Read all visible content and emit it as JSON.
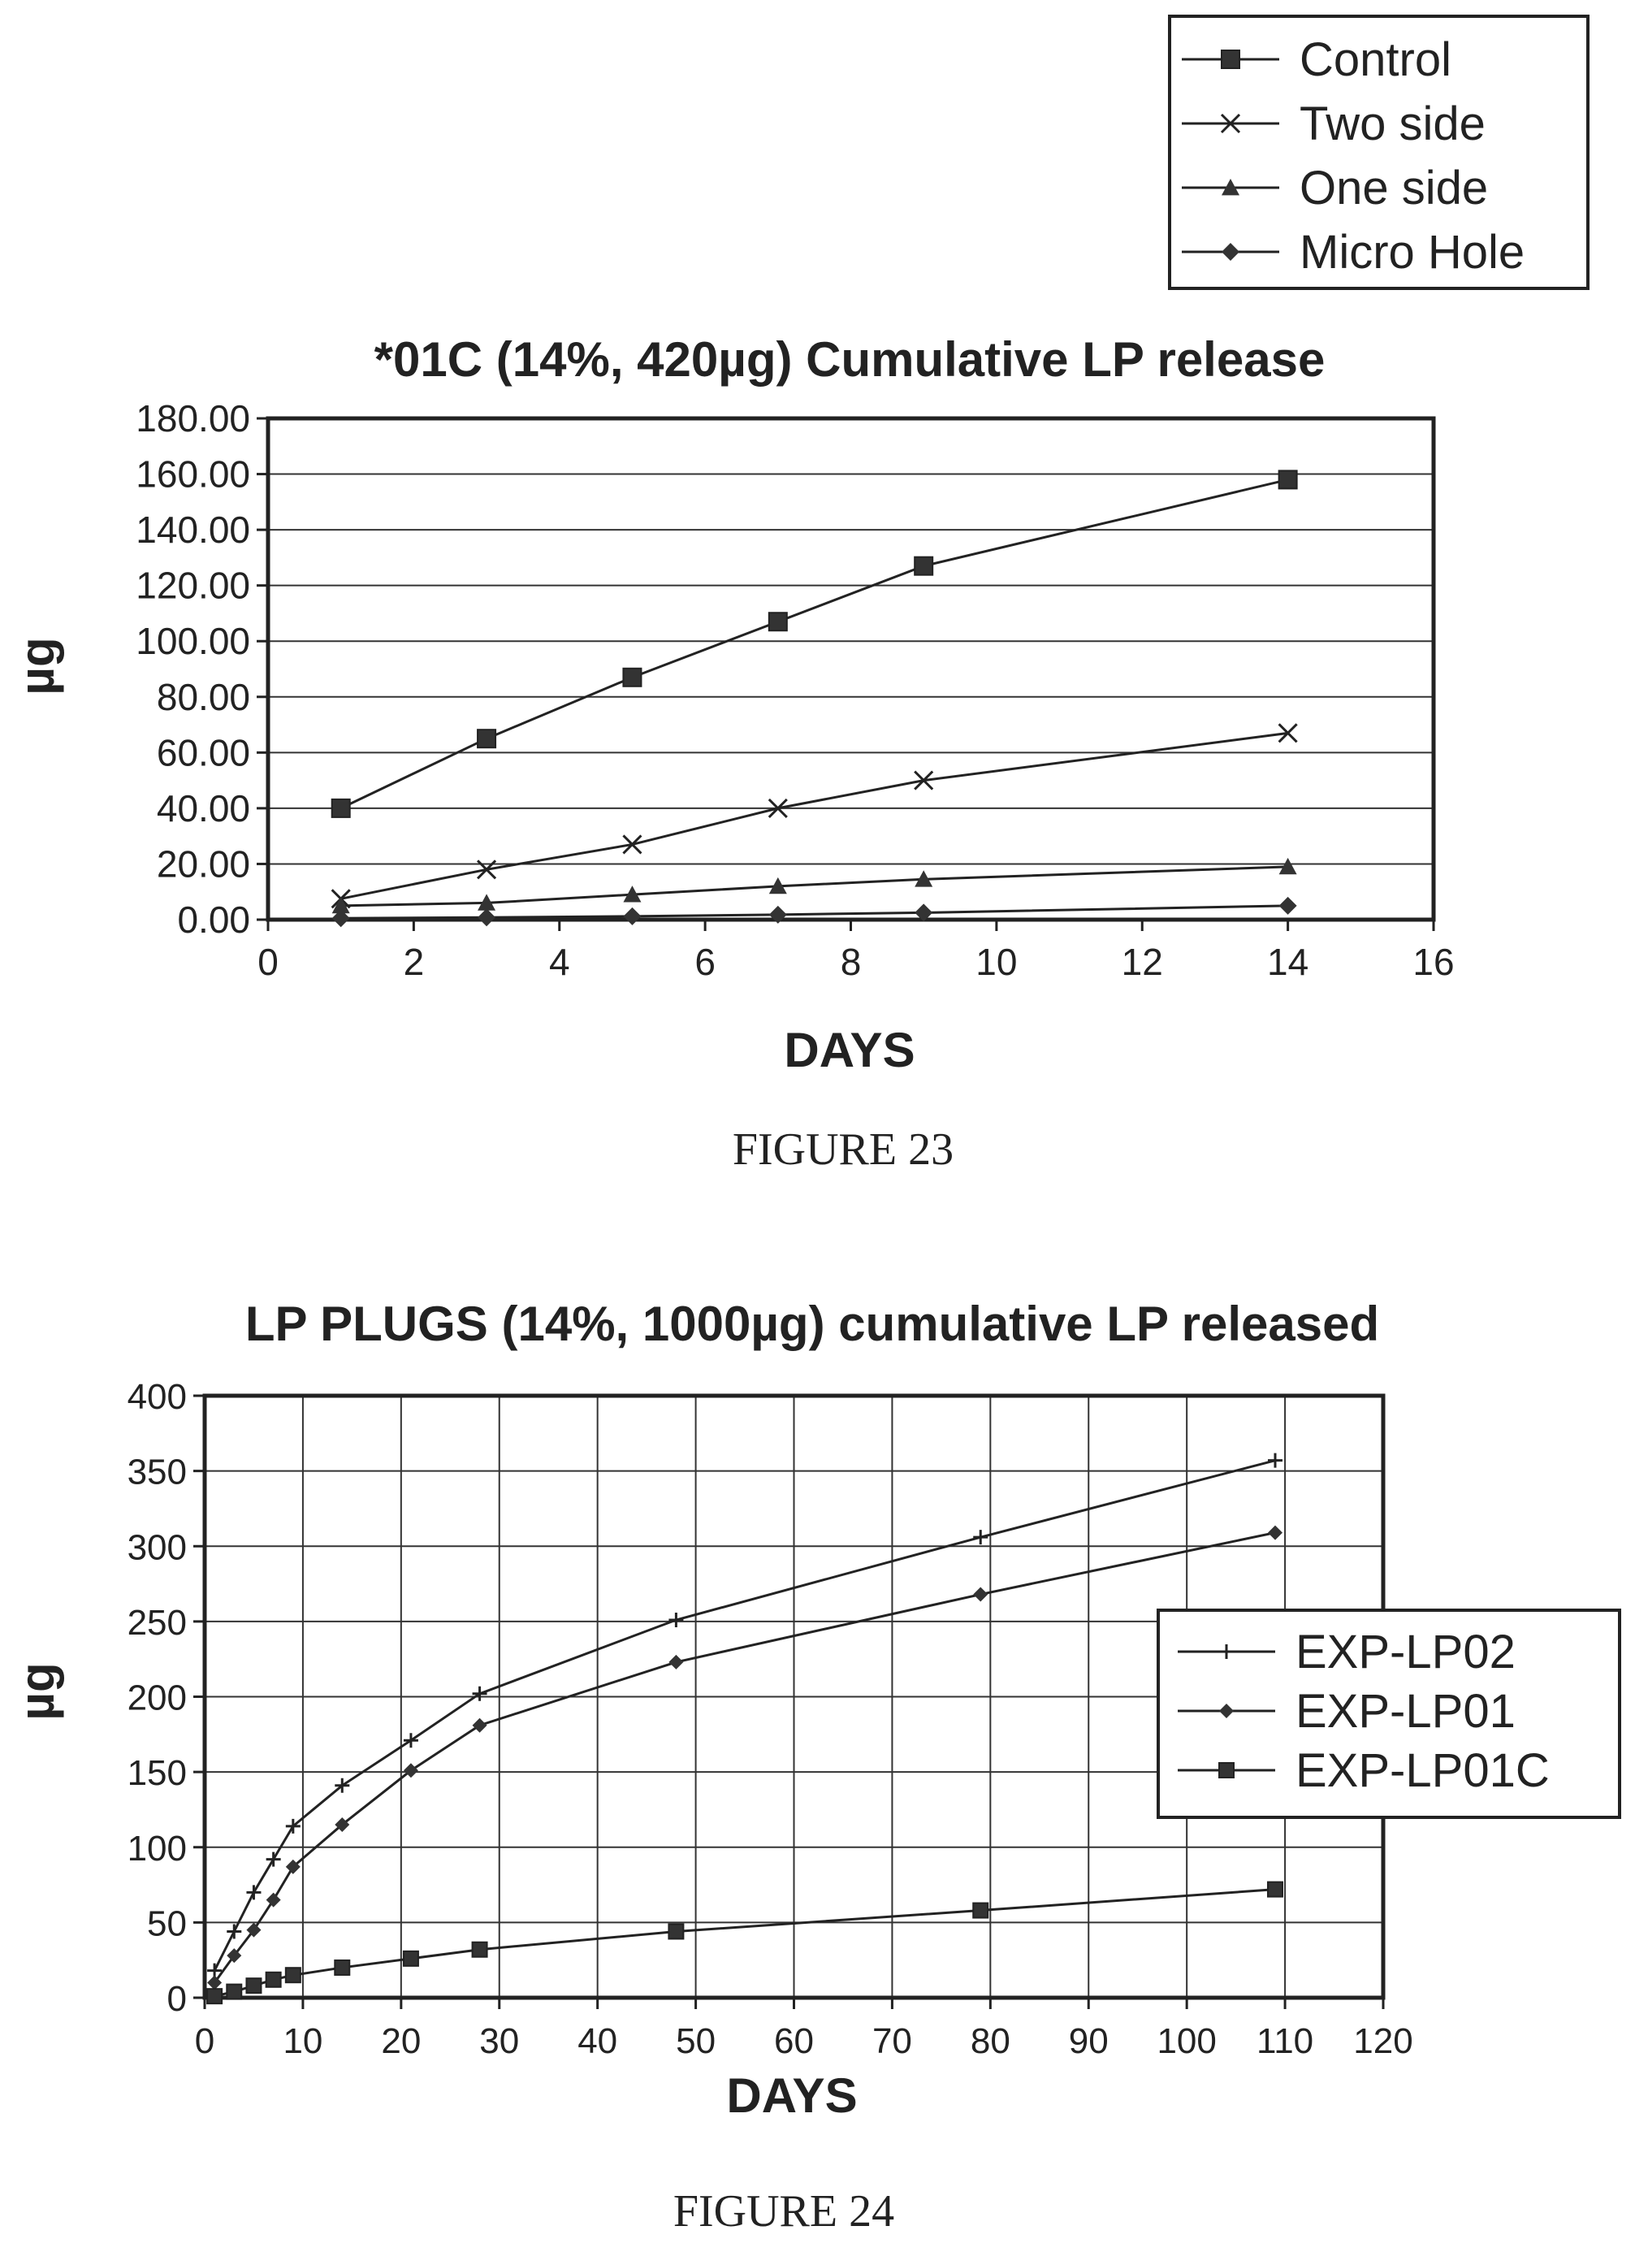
{
  "chart_data": [
    {
      "type": "line",
      "title": "*01C (14%, 420µg) Cumulative LP release",
      "xlabel": "DAYS",
      "ylabel": "µg",
      "xlim": [
        0,
        16
      ],
      "ylim": [
        0,
        180
      ],
      "x_ticks": [
        0,
        2,
        4,
        6,
        8,
        10,
        12,
        14,
        16
      ],
      "x_tick_labels": [
        "0",
        "2",
        "4",
        "6",
        "8",
        "10",
        "12",
        "14",
        "16"
      ],
      "y_ticks": [
        0,
        20,
        40,
        60,
        80,
        100,
        120,
        140,
        160,
        180
      ],
      "y_tick_labels": [
        "0.00",
        "20.00",
        "40.00",
        "60.00",
        "80.00",
        "100.00",
        "120.00",
        "140.00",
        "160.00",
        "180.00"
      ],
      "grid": "horizontal",
      "legend_position": "top-right",
      "x": [
        1,
        3,
        5,
        7,
        9,
        14
      ],
      "series": [
        {
          "name": "Control",
          "marker": "square",
          "values": [
            40,
            65,
            87,
            107,
            127,
            158
          ]
        },
        {
          "name": "Two side",
          "marker": "x",
          "values": [
            7.5,
            18,
            27,
            40,
            50,
            67
          ]
        },
        {
          "name": "One side",
          "marker": "triangle",
          "values": [
            5,
            6,
            9,
            12,
            14.5,
            19
          ]
        },
        {
          "name": "Micro Hole",
          "marker": "diamond",
          "values": [
            0.5,
            0.8,
            1.2,
            1.8,
            2.5,
            5
          ]
        }
      ],
      "caption": "FIGURE 23"
    },
    {
      "type": "line",
      "title": "LP PLUGS (14%, 1000µg) cumulative LP released",
      "xlabel": "DAYS",
      "ylabel": "µg",
      "xlim": [
        0,
        120
      ],
      "ylim": [
        0,
        400
      ],
      "x_ticks": [
        0,
        10,
        20,
        30,
        40,
        50,
        60,
        70,
        80,
        90,
        100,
        110,
        120
      ],
      "x_tick_labels": [
        "0",
        "10",
        "20",
        "30",
        "40",
        "50",
        "60",
        "70",
        "80",
        "90",
        "100",
        "110",
        "120"
      ],
      "y_ticks": [
        0,
        50,
        100,
        150,
        200,
        250,
        300,
        350,
        400
      ],
      "y_tick_labels": [
        "0",
        "50",
        "100",
        "150",
        "200",
        "250",
        "300",
        "350",
        "400"
      ],
      "grid": "both",
      "legend_position": "right",
      "series": [
        {
          "name": "EXP-LP02",
          "marker": "plus",
          "x": [
            1,
            3,
            5,
            7,
            9,
            14,
            21,
            28,
            48,
            79,
            109
          ],
          "values": [
            18,
            44,
            70,
            92,
            114,
            141,
            171,
            202,
            251,
            306,
            357
          ]
        },
        {
          "name": "EXP-LP01",
          "marker": "diamond",
          "x": [
            1,
            3,
            5,
            7,
            9,
            14,
            21,
            28,
            48,
            79,
            109
          ],
          "values": [
            10,
            28,
            45,
            65,
            87,
            115,
            151,
            181,
            223,
            268,
            309
          ]
        },
        {
          "name": "EXP-LP01C",
          "marker": "square",
          "x": [
            1,
            3,
            5,
            7,
            9,
            14,
            21,
            28,
            48,
            79,
            109
          ],
          "values": [
            1,
            4,
            8,
            12,
            15,
            20,
            26,
            32,
            44,
            58,
            72
          ]
        }
      ],
      "caption": "FIGURE 24"
    }
  ]
}
